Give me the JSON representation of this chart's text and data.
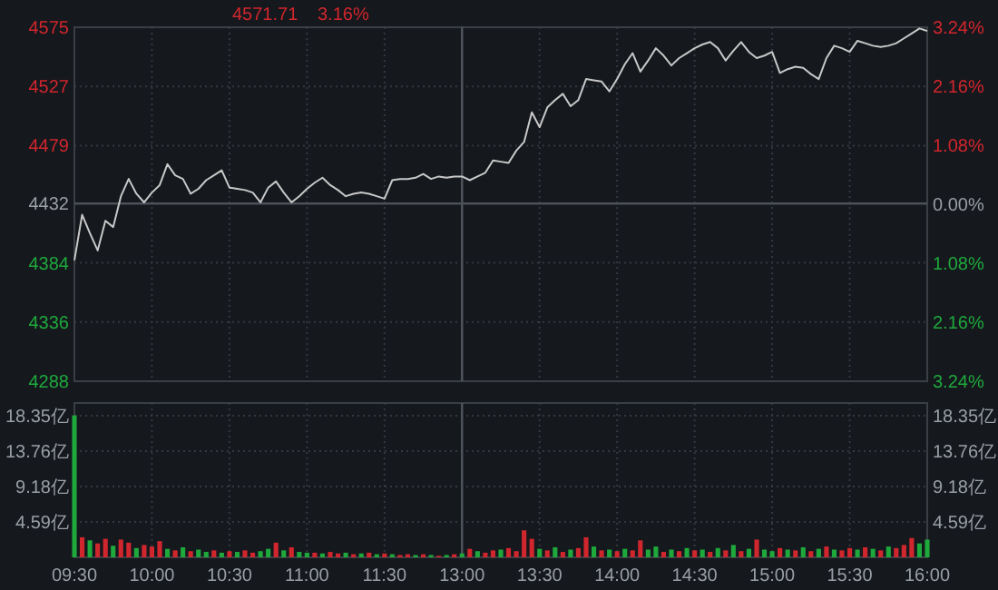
{
  "chart_data": [
    {
      "type": "line",
      "title": "4571.71",
      "subtitle": "3.16%",
      "color": "#c8c8c8",
      "grid": true,
      "tick_labels": "y",
      "categories": [
        "09:30",
        null,
        null,
        null,
        null,
        null,
        null,
        null,
        null,
        null,
        "10:00",
        null,
        null,
        null,
        null,
        null,
        null,
        null,
        null,
        null,
        "10:30",
        null,
        null,
        null,
        null,
        null,
        null,
        null,
        null,
        null,
        "11:00",
        null,
        null,
        null,
        null,
        null,
        null,
        null,
        null,
        null,
        "11:30",
        null,
        null,
        null,
        null,
        null,
        null,
        null,
        null,
        null,
        "13:00",
        null,
        null,
        null,
        null,
        null,
        null,
        null,
        null,
        null,
        "13:30",
        null,
        null,
        null,
        null,
        null,
        null,
        null,
        null,
        null,
        "14:00",
        null,
        null,
        null,
        null,
        null,
        null,
        null,
        null,
        null,
        "14:30",
        null,
        null,
        null,
        null,
        null,
        null,
        null,
        null,
        null,
        "15:00",
        null,
        null,
        null,
        null,
        null,
        null,
        null,
        null,
        null,
        "15:30",
        null,
        null,
        null,
        null,
        null,
        null,
        null,
        null,
        null,
        "16:00"
      ],
      "values": [
        4386,
        4423,
        4408,
        4394,
        4418,
        4413,
        4438,
        4452,
        4440,
        4433,
        4441,
        4447,
        4464,
        4455,
        4452,
        4440,
        4444,
        4451,
        4455,
        4459,
        4445,
        4444,
        4443,
        4441,
        4433,
        4445,
        4450,
        4441,
        4433,
        4438,
        4444,
        4449,
        4453,
        4447,
        4443,
        4438,
        4440,
        4441,
        4440,
        4438,
        4436,
        4451,
        4452,
        4452,
        4453,
        4456,
        4452,
        4454,
        4453,
        4454,
        4454,
        4451,
        4454,
        4457,
        4467,
        4466,
        4465,
        4475,
        4482,
        4506,
        4494,
        4510,
        4516,
        4521,
        4511,
        4516,
        4533,
        4532,
        4531,
        4523,
        4533,
        4545,
        4554,
        4539,
        4548,
        4558,
        4552,
        4544,
        4550,
        4554,
        4558,
        4561,
        4563,
        4558,
        4548,
        4556,
        4563,
        4555,
        4550,
        4552,
        4555,
        4538,
        4541,
        4543,
        4542,
        4537,
        4533,
        4550,
        4560,
        4558,
        4555,
        4564,
        4562,
        4560,
        4559,
        4560,
        4562,
        4566,
        4570,
        4574,
        4572
      ],
      "ylim": [
        4288,
        4575
      ],
      "yticks": [
        4288,
        4336,
        4384,
        4432,
        4479,
        4527,
        4575
      ],
      "y2lim": [
        -3.24,
        3.24
      ],
      "y2ticks": [
        {
          "value": -3.24,
          "label": "3.24%"
        },
        {
          "value": -2.16,
          "label": "2.16%"
        },
        {
          "value": -1.08,
          "label": "1.08%"
        },
        {
          "value": 0,
          "label": "0.00%"
        },
        {
          "value": 1.08,
          "label": "1.08%"
        },
        {
          "value": 2.16,
          "label": "2.16%"
        },
        {
          "value": 3.24,
          "label": "3.24%"
        }
      ],
      "ref_lines": [
        {
          "axis": "x",
          "value": "13:00"
        },
        {
          "axis": "y",
          "value": 4432
        }
      ]
    },
    {
      "type": "bar",
      "grid": true,
      "categories": [
        "09:30",
        null,
        null,
        null,
        null,
        null,
        null,
        null,
        null,
        null,
        "10:00",
        null,
        null,
        null,
        null,
        null,
        null,
        null,
        null,
        null,
        "10:30",
        null,
        null,
        null,
        null,
        null,
        null,
        null,
        null,
        null,
        "11:00",
        null,
        null,
        null,
        null,
        null,
        null,
        null,
        null,
        null,
        "11:30",
        null,
        null,
        null,
        null,
        null,
        null,
        null,
        null,
        null,
        "13:00",
        null,
        null,
        null,
        null,
        null,
        null,
        null,
        null,
        null,
        "13:30",
        null,
        null,
        null,
        null,
        null,
        null,
        null,
        null,
        null,
        "14:00",
        null,
        null,
        null,
        null,
        null,
        null,
        null,
        null,
        null,
        "14:30",
        null,
        null,
        null,
        null,
        null,
        null,
        null,
        null,
        null,
        "15:00",
        null,
        null,
        null,
        null,
        null,
        null,
        null,
        null,
        null,
        "15:30",
        null,
        null,
        null,
        null,
        null,
        null,
        null,
        null,
        null,
        "16:00"
      ],
      "values": [
        18.4,
        2.6,
        2.2,
        1.8,
        2.4,
        1.5,
        2.3,
        1.9,
        1.2,
        1.6,
        1.4,
        2.1,
        1.1,
        0.9,
        1.3,
        0.8,
        1.0,
        0.7,
        0.9,
        0.6,
        0.8,
        0.7,
        0.9,
        0.6,
        0.8,
        1.1,
        1.9,
        0.9,
        1.3,
        0.7,
        0.6,
        0.6,
        0.5,
        0.7,
        0.5,
        0.6,
        0.4,
        0.5,
        0.6,
        0.4,
        0.5,
        0.4,
        0.3,
        0.4,
        0.3,
        0.4,
        0.3,
        0.2,
        0.3,
        0.4,
        0.5,
        1.1,
        0.8,
        0.6,
        0.9,
        1.0,
        1.2,
        0.8,
        3.5,
        2.4,
        1.1,
        0.9,
        1.3,
        0.7,
        1.0,
        1.2,
        2.6,
        1.4,
        0.9,
        1.0,
        0.8,
        1.1,
        0.9,
        2.2,
        1.0,
        1.4,
        0.7,
        1.0,
        0.8,
        1.2,
        0.9,
        1.0,
        0.7,
        1.2,
        0.9,
        1.6,
        0.8,
        1.1,
        2.3,
        1.0,
        0.8,
        1.2,
        1.0,
        0.9,
        1.3,
        0.8,
        1.1,
        1.4,
        1.0,
        0.9,
        1.2,
        1.0,
        1.3,
        1.1,
        0.9,
        1.4,
        1.2,
        1.6,
        2.5,
        1.8,
        2.3
      ],
      "colors": [
        "#1fa83c",
        "#d0262d",
        "#1fa83c",
        "#d0262d",
        "#d0262d",
        "#1fa83c",
        "#d0262d",
        "#d0262d",
        "#1fa83c",
        "#d0262d",
        "#d0262d",
        "#d0262d",
        "#1fa83c",
        "#d0262d",
        "#1fa83c",
        "#d0262d",
        "#1fa83c",
        "#1fa83c",
        "#d0262d",
        "#1fa83c",
        "#d0262d",
        "#1fa83c",
        "#d0262d",
        "#d0262d",
        "#1fa83c",
        "#1fa83c",
        "#d0262d",
        "#1fa83c",
        "#d0262d",
        "#1fa83c",
        "#1fa83c",
        "#d0262d",
        "#1fa83c",
        "#d0262d",
        "#d0262d",
        "#1fa83c",
        "#d0262d",
        "#1fa83c",
        "#d0262d",
        "#1fa83c",
        "#d0262d",
        "#1fa83c",
        "#d0262d",
        "#d0262d",
        "#1fa83c",
        "#d0262d",
        "#1fa83c",
        "#d0262d",
        "#1fa83c",
        "#d0262d",
        "#1fa83c",
        "#d0262d",
        "#1fa83c",
        "#d0262d",
        "#d0262d",
        "#1fa83c",
        "#d0262d",
        "#d0262d",
        "#d0262d",
        "#d0262d",
        "#1fa83c",
        "#d0262d",
        "#1fa83c",
        "#d0262d",
        "#1fa83c",
        "#d0262d",
        "#d0262d",
        "#1fa83c",
        "#d0262d",
        "#1fa83c",
        "#d0262d",
        "#1fa83c",
        "#d0262d",
        "#d0262d",
        "#1fa83c",
        "#1fa83c",
        "#d0262d",
        "#1fa83c",
        "#d0262d",
        "#1fa83c",
        "#d0262d",
        "#1fa83c",
        "#d0262d",
        "#1fa83c",
        "#d0262d",
        "#1fa83c",
        "#d0262d",
        "#1fa83c",
        "#d0262d",
        "#1fa83c",
        "#1fa83c",
        "#d0262d",
        "#1fa83c",
        "#d0262d",
        "#1fa83c",
        "#d0262d",
        "#1fa83c",
        "#d0262d",
        "#1fa83c",
        "#d0262d",
        "#d0262d",
        "#1fa83c",
        "#d0262d",
        "#1fa83c",
        "#d0262d",
        "#1fa83c",
        "#d0262d",
        "#d0262d",
        "#d0262d",
        "#1fa83c",
        "#1fa83c"
      ],
      "ylim": [
        0,
        20
      ],
      "yticks": [
        {
          "value": 4.59,
          "label": "4.59亿"
        },
        {
          "value": 9.18,
          "label": "9.18亿"
        },
        {
          "value": 13.76,
          "label": "13.76亿"
        },
        {
          "value": 18.35,
          "label": "18.35亿"
        }
      ],
      "y2lim": [
        0,
        20
      ],
      "y2ticks": [
        {
          "value": 4.59,
          "label": "4.59亿"
        },
        {
          "value": 9.18,
          "label": "9.18亿"
        },
        {
          "value": 13.76,
          "label": "13.76亿"
        },
        {
          "value": 18.35,
          "label": "18.35亿"
        }
      ],
      "ref_lines": [
        {
          "axis": "x",
          "value": "13:00"
        }
      ]
    }
  ]
}
